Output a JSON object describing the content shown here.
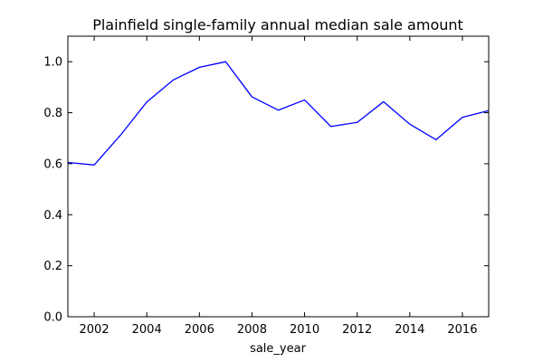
{
  "chart_data": {
    "type": "line",
    "title": "Plainfield single-family annual median sale amount",
    "xlabel": "sale_year",
    "ylabel": "",
    "xlim": [
      2001,
      2017
    ],
    "ylim": [
      0.0,
      1.1
    ],
    "x_ticks": [
      2002,
      2004,
      2006,
      2008,
      2010,
      2012,
      2014,
      2016
    ],
    "y_ticks": [
      0.0,
      0.2,
      0.4,
      0.6,
      0.8,
      1.0
    ],
    "x_tick_labels": [
      "2002",
      "2004",
      "2006",
      "2008",
      "2010",
      "2012",
      "2014",
      "2016"
    ],
    "y_tick_labels": [
      "0.0",
      "0.2",
      "0.4",
      "0.6",
      "0.8",
      "1.0"
    ],
    "grid": false,
    "legend": "none",
    "series": [
      {
        "color": "#0000ff",
        "x": [
          2001,
          2002,
          2003,
          2004,
          2005,
          2006,
          2007,
          2008,
          2009,
          2010,
          2011,
          2012,
          2013,
          2014,
          2015,
          2016,
          2017
        ],
        "y": [
          0.605,
          0.595,
          0.712,
          0.842,
          0.928,
          0.978,
          1.0,
          0.862,
          0.81,
          0.85,
          0.746,
          0.762,
          0.843,
          0.755,
          0.694,
          0.782,
          0.808
        ]
      }
    ]
  }
}
